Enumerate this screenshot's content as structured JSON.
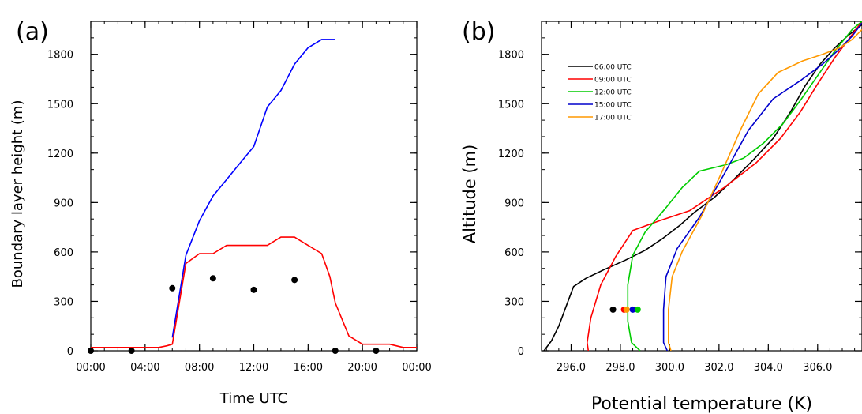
{
  "chart_data": [
    {
      "type": "line",
      "panel_label": "(a)",
      "xlabel": "Time UTC",
      "ylabel": "Boundary layer height (m)",
      "xlim": [
        0,
        24
      ],
      "ylim": [
        0,
        2000
      ],
      "x_ticks": [
        0,
        4,
        8,
        12,
        16,
        20,
        24
      ],
      "x_tick_labels": [
        "00:00",
        "04:00",
        "08:00",
        "12:00",
        "16:00",
        "20:00",
        "00:00"
      ],
      "y_ticks": [
        0,
        300,
        600,
        900,
        1200,
        1500,
        1800
      ],
      "y_tick_labels": [
        "0",
        "300",
        "600",
        "900",
        "1200",
        "1500",
        "1800"
      ],
      "series": [
        {
          "color": "#0000ff",
          "x": [
            6,
            7,
            8,
            9,
            10,
            11,
            12,
            13,
            14,
            15,
            16,
            17,
            18
          ],
          "y": [
            80,
            580,
            790,
            940,
            1040,
            1140,
            1240,
            1480,
            1580,
            1740,
            1840,
            1890,
            1890
          ]
        },
        {
          "color": "#ff0000",
          "x": [
            0,
            1,
            2,
            3,
            4,
            5,
            5.6,
            6,
            7,
            8,
            9,
            10,
            11,
            12,
            13,
            14,
            15,
            16,
            17,
            17.6,
            18,
            19,
            20,
            21,
            22,
            23,
            24
          ],
          "y": [
            20,
            20,
            20,
            20,
            20,
            20,
            30,
            40,
            530,
            590,
            590,
            640,
            640,
            640,
            640,
            690,
            690,
            640,
            590,
            450,
            290,
            90,
            40,
            40,
            40,
            20,
            20
          ]
        },
        {
          "type": "scatter",
          "color": "#000000",
          "x": [
            0,
            3,
            6,
            9,
            12,
            15,
            18,
            21
          ],
          "y": [
            0,
            0,
            380,
            440,
            370,
            430,
            0,
            0
          ]
        }
      ]
    },
    {
      "type": "line",
      "panel_label": "(b)",
      "xlabel": "Potential temperature (K)",
      "ylabel": "Altitude (m)",
      "xlim": [
        294.8,
        307.8
      ],
      "ylim": [
        0,
        2000
      ],
      "x_ticks": [
        296,
        298,
        300,
        302,
        304,
        306
      ],
      "x_tick_labels": [
        "296.0",
        "298.0",
        "300.0",
        "302.0",
        "304.0",
        "306.0"
      ],
      "y_ticks": [
        0,
        300,
        600,
        900,
        1200,
        1500,
        1800
      ],
      "y_tick_labels": [
        "0",
        "300",
        "600",
        "900",
        "1200",
        "1500",
        "1800"
      ],
      "legend_position": "top-left",
      "series": [
        {
          "name": "06:00 UTC",
          "color": "#000000",
          "x": [
            294.9,
            295.2,
            295.5,
            295.8,
            296.1,
            296.6,
            297.3,
            298.2,
            299.0,
            299.7,
            300.4,
            301.0,
            301.8,
            302.6,
            303.4,
            304.2,
            304.9,
            305.5,
            306.1,
            306.7,
            307.2,
            307.8
          ],
          "y": [
            0,
            60,
            150,
            270,
            390,
            440,
            490,
            550,
            610,
            680,
            760,
            840,
            930,
            1040,
            1160,
            1290,
            1450,
            1610,
            1740,
            1840,
            1910,
            1980
          ]
        },
        {
          "name": "09:00 UTC",
          "color": "#ff0000",
          "x": [
            296.7,
            296.65,
            296.8,
            297.2,
            297.8,
            298.5,
            299.6,
            300.8,
            302.2,
            303.5,
            304.5,
            305.3,
            306.0,
            306.7,
            307.3,
            307.8
          ],
          "y": [
            0,
            50,
            200,
            400,
            570,
            730,
            790,
            850,
            990,
            1140,
            1290,
            1450,
            1620,
            1780,
            1900,
            2000
          ]
        },
        {
          "name": "12:00 UTC",
          "color": "#00cc00",
          "x": [
            298.8,
            298.45,
            298.3,
            298.3,
            298.5,
            299.0,
            299.8,
            300.5,
            301.2,
            302.3,
            303.0,
            303.8,
            304.6,
            305.3,
            306.0,
            306.7,
            307.4,
            307.8
          ],
          "y": [
            0,
            50,
            180,
            400,
            580,
            720,
            860,
            990,
            1090,
            1130,
            1170,
            1260,
            1380,
            1520,
            1670,
            1820,
            1950,
            2000
          ]
        },
        {
          "name": "15:00 UTC",
          "color": "#0000cc",
          "x": [
            299.9,
            299.75,
            299.75,
            299.85,
            300.3,
            301.2,
            302.2,
            303.2,
            304.2,
            305.3,
            306.2,
            306.8,
            307.4,
            307.8
          ],
          "y": [
            0,
            50,
            250,
            450,
            620,
            810,
            1070,
            1340,
            1530,
            1640,
            1740,
            1820,
            1910,
            1990
          ]
        },
        {
          "name": "17:00 UTC",
          "color": "#ff9900",
          "x": [
            300.05,
            299.95,
            299.95,
            300.1,
            300.5,
            301.3,
            302.1,
            302.9,
            303.6,
            304.4,
            305.4,
            306.2,
            306.9,
            307.4,
            307.8
          ],
          "y": [
            0,
            50,
            250,
            450,
            600,
            820,
            1080,
            1350,
            1560,
            1690,
            1760,
            1800,
            1840,
            1890,
            1950
          ]
        },
        {
          "type": "scatter",
          "x": [
            297.7,
            298.15,
            298.25,
            298.5,
            298.7
          ],
          "y": [
            250,
            250,
            250,
            250,
            250
          ],
          "colors": [
            "#000000",
            "#ff0000",
            "#ff9900",
            "#0000cc",
            "#00cc00"
          ]
        }
      ]
    }
  ]
}
